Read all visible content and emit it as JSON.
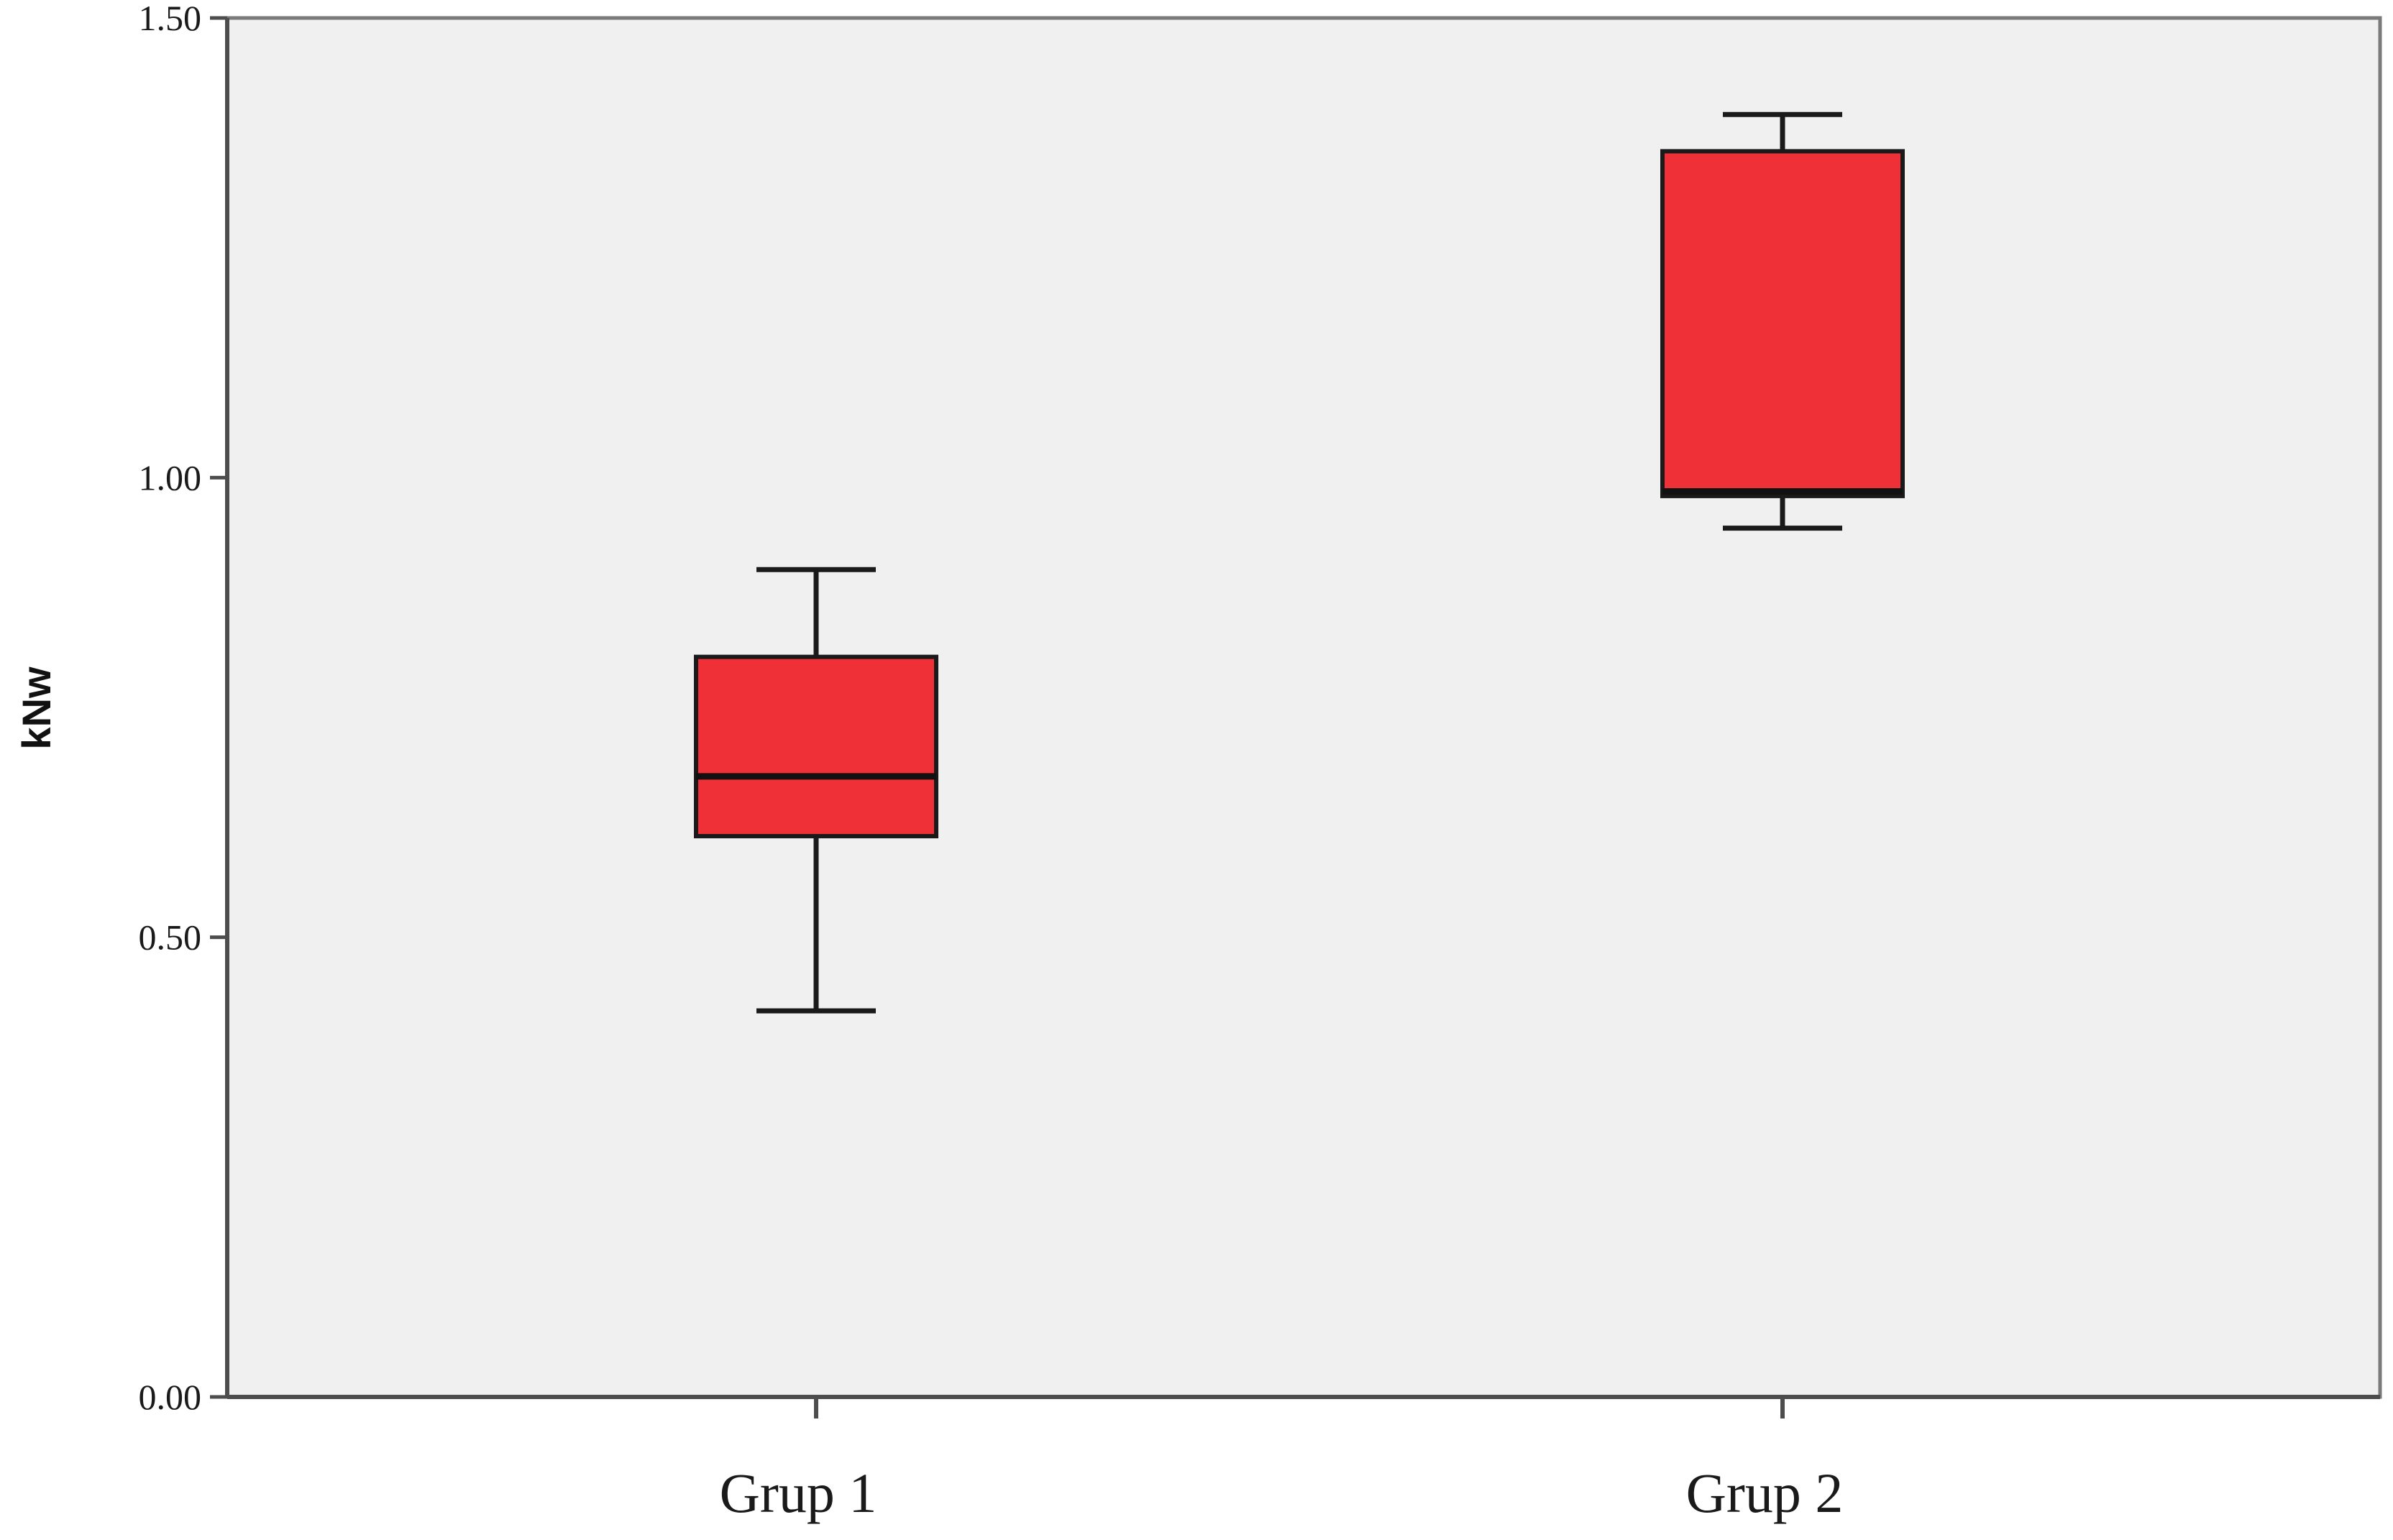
{
  "chart_data": {
    "type": "boxplot",
    "title": "",
    "xlabel": "",
    "ylabel": "kNw",
    "ylim": [
      0,
      1.5
    ],
    "yticks": [
      {
        "value": 0,
        "label": "0.00"
      },
      {
        "value": 0.5,
        "label": "0.50"
      },
      {
        "value": 1,
        "label": "1.00"
      },
      {
        "value": 1.5,
        "label": "1.50"
      }
    ],
    "categories": [
      "Grup 1",
      "Grup 2"
    ],
    "boxes": [
      {
        "category": "Grup 1",
        "min": 0.42,
        "q1": 0.61,
        "median": 0.675,
        "q3": 0.805,
        "max": 0.9
      },
      {
        "category": "Grup 2",
        "min": 0.945,
        "q1": 0.98,
        "median": 0.985,
        "q3": 1.355,
        "max": 1.395
      }
    ],
    "grid": false,
    "legend": "none",
    "colors": {
      "box_fill": "#ef3137",
      "plot_background": "#f0f0f0",
      "axis": "#4d4d4d",
      "frame": "#7a7a7a"
    }
  }
}
